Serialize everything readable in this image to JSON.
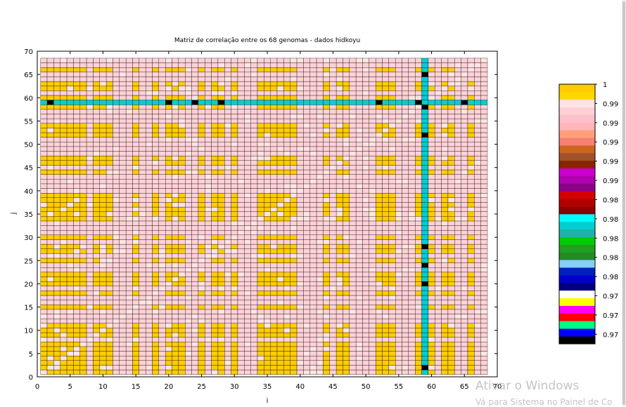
{
  "chart_data": {
    "type": "heatmap",
    "title": "Matriz de correlação entre os 68 genomas - dados hidkoyu",
    "xlabel": "i",
    "ylabel": "j",
    "xlim": [
      0,
      70
    ],
    "ylim": [
      0,
      70
    ],
    "xticks": [
      0,
      5,
      10,
      15,
      20,
      25,
      30,
      35,
      40,
      45,
      50,
      55,
      60,
      65,
      70
    ],
    "yticks": [
      0,
      5,
      10,
      15,
      20,
      25,
      30,
      35,
      40,
      45,
      50,
      55,
      60,
      65,
      70
    ],
    "matrix_size": 68,
    "grid": true,
    "colorbar": {
      "min": 0.973,
      "max": 1.0,
      "ticks": [
        "1",
        "0.998",
        "0.996",
        "0.994",
        "0.992",
        "0.99",
        "0.988",
        "0.986",
        "0.984",
        "0.982",
        "0.98",
        "0.978",
        "0.976",
        "0.974"
      ],
      "tick_values": [
        1.0,
        0.998,
        0.996,
        0.994,
        0.992,
        0.99,
        0.988,
        0.986,
        0.984,
        0.982,
        0.98,
        0.978,
        0.976,
        0.974
      ],
      "colors": [
        "#000000",
        "#0000ff",
        "#00ff80",
        "#ff0000",
        "#ff00ff",
        "#ffff00",
        "#ffffff",
        "#000080",
        "#0000cd",
        "#0020c0",
        "#87cefa",
        "#228b22",
        "#1fa01f",
        "#00cc00",
        "#20b2aa",
        "#00ced1",
        "#00ffff",
        "#8b0000",
        "#b20000",
        "#d40000",
        "#8b008b",
        "#b000b0",
        "#cc00cc",
        "#8b2500",
        "#a0522d",
        "#cd661d",
        "#fa8072",
        "#ffa07a",
        "#ffb6b9",
        "#ffc0cb",
        "#ffd1d6",
        "#ffe4e1",
        "#ffd700",
        "#ffcc00"
      ]
    },
    "special_row_j": 59,
    "special_col_i": 59,
    "special_row_colors": [
      "#00ced1",
      "#00cc00",
      "#0000cd",
      "#ff0000",
      "#ff00ff",
      "#000000",
      "#00ced1"
    ],
    "cell_palette": {
      "high": "#ffcc00",
      "mid": "#ffd1d6",
      "low": "#ffe4e1"
    }
  },
  "watermark": {
    "line1": "Ativar o Windows",
    "line2": "Vá para Sistema no Painel de Co"
  }
}
